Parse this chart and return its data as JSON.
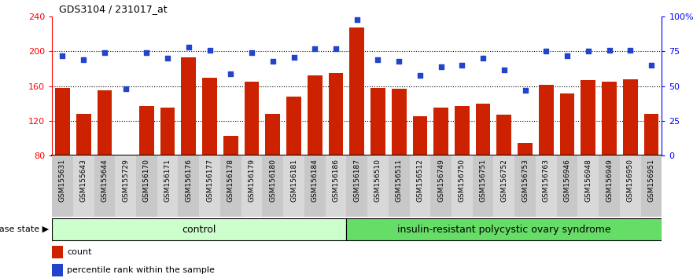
{
  "title": "GDS3104 / 231017_at",
  "samples": [
    "GSM155631",
    "GSM155643",
    "GSM155644",
    "GSM155729",
    "GSM156170",
    "GSM156171",
    "GSM156176",
    "GSM156177",
    "GSM156178",
    "GSM156179",
    "GSM156180",
    "GSM156181",
    "GSM156184",
    "GSM156186",
    "GSM156187",
    "GSM156510",
    "GSM156511",
    "GSM156512",
    "GSM156749",
    "GSM156750",
    "GSM156751",
    "GSM156752",
    "GSM156753",
    "GSM156763",
    "GSM156946",
    "GSM156948",
    "GSM156949",
    "GSM156950",
    "GSM156951"
  ],
  "counts": [
    158,
    128,
    155,
    79,
    137,
    135,
    193,
    170,
    103,
    165,
    128,
    148,
    172,
    175,
    228,
    158,
    157,
    125,
    135,
    137,
    140,
    127,
    95,
    162,
    152,
    167,
    165,
    168,
    128
  ],
  "percentiles": [
    72,
    69,
    74,
    48,
    74,
    70,
    78,
    76,
    59,
    74,
    68,
    71,
    77,
    77,
    98,
    69,
    68,
    58,
    64,
    65,
    70,
    62,
    47,
    75,
    72,
    75,
    76,
    76,
    65
  ],
  "n_control": 14,
  "control_label": "control",
  "disease_label": "insulin-resistant polycystic ovary syndrome",
  "disease_state_label": "disease state",
  "ylim_left": [
    80,
    240
  ],
  "ylim_right": [
    0,
    100
  ],
  "yticks_left": [
    80,
    120,
    160,
    200,
    240
  ],
  "yticks_right": [
    0,
    25,
    50,
    75,
    100
  ],
  "bar_color": "#cc2200",
  "dot_color": "#2244cc",
  "control_fill": "#ccffcc",
  "disease_fill": "#66dd66",
  "legend_count_label": "count",
  "legend_pct_label": "percentile rank within the sample",
  "dotted_lines": [
    120,
    160,
    200
  ]
}
